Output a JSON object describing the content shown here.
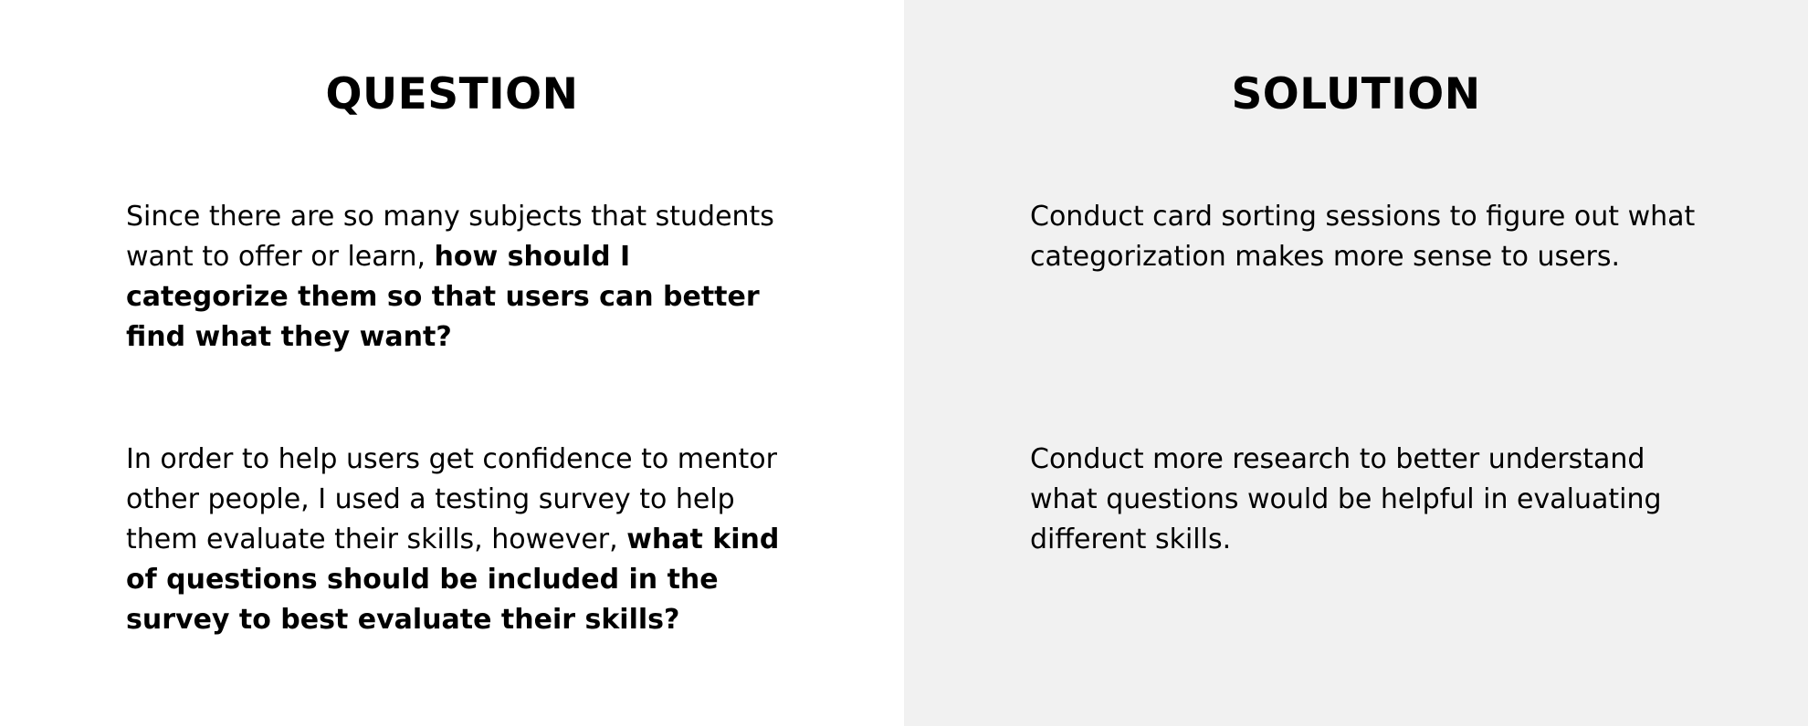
{
  "question": {
    "heading": "QUESTION",
    "items": [
      {
        "normal": "Since there are so many subjects that students want to offer or learn, ",
        "bold": "how should I categorize them so that users can better find what they want?"
      },
      {
        "normal": "In order to help users get confidence to mentor other people, I used a testing survey to help them evaluate their skills, however, ",
        "bold": "what kind of questions should be included in the survey to best evaluate their skills?"
      }
    ]
  },
  "solution": {
    "heading": "SOLUTION",
    "items": [
      "Conduct card sorting sessions to figure out what categorization makes more sense to users.",
      "Conduct more research to better understand what questions would be helpful in evaluating different skills."
    ]
  },
  "colors": {
    "left_background": "#ffffff",
    "right_background": "#f1f1f1",
    "text": "#000000"
  }
}
